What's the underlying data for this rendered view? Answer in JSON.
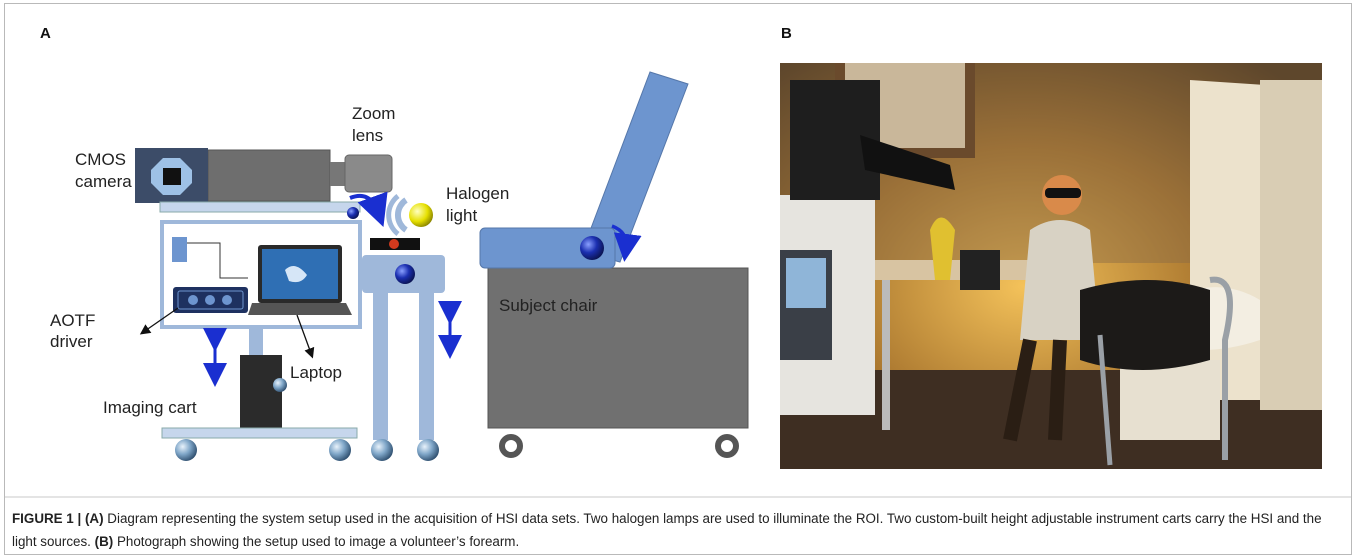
{
  "panel_a": {
    "label": "A",
    "labels": {
      "zoom_lens": [
        "Zoom",
        "lens"
      ],
      "cmos_camera": [
        "CMOS",
        "camera"
      ],
      "halogen_light": [
        "Halogen",
        "light"
      ],
      "aotf_driver": [
        "AOTF",
        "driver"
      ],
      "laptop": "Laptop",
      "imaging_cart": "Imaging cart",
      "subject_chair": "Subject chair"
    }
  },
  "panel_b": {
    "label": "B"
  },
  "caption": {
    "figure_label": "FIGURE 1 |",
    "parts": [
      {
        "bold": "(A)",
        "text": "Diagram representing the system setup used in the acquisition of HSI data sets. Two halogen lamps are used to illuminate the ROI. Two custom-built height adjustable instrument carts carry the HSI and the light sources."
      },
      {
        "bold": "(B)",
        "text": "Photograph showing the setup used to image a volunteer’s forearm."
      }
    ]
  }
}
